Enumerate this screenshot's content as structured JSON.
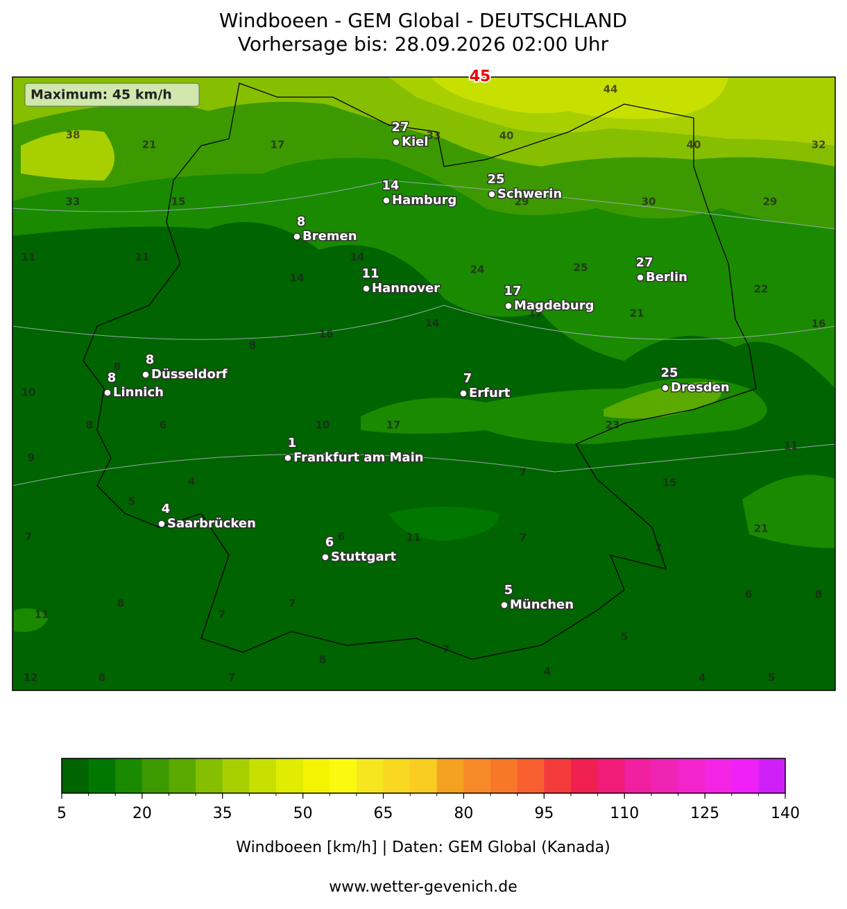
{
  "header": {
    "title": "Windboeen - GEM Global - DEUTSCHLAND",
    "subtitle": "Vorhersage bis: 28.09.2026 02:00 Uhr"
  },
  "map": {
    "maximum_box": "Maximum: 45 km/h",
    "maximum_marker": "45",
    "cities": [
      {
        "name": "Kiel",
        "value": 27
      },
      {
        "name": "Hamburg",
        "value": 14
      },
      {
        "name": "Schwerin",
        "value": 25
      },
      {
        "name": "Bremen",
        "value": 8
      },
      {
        "name": "Hannover",
        "value": 11
      },
      {
        "name": "Berlin",
        "value": 27
      },
      {
        "name": "Magdeburg",
        "value": 17
      },
      {
        "name": "Düsseldorf",
        "value": 8
      },
      {
        "name": "Linnich",
        "value": 8
      },
      {
        "name": "Dresden",
        "value": 25
      },
      {
        "name": "Erfurt",
        "value": 7
      },
      {
        "name": "Frankfurt am Main",
        "value": 1
      },
      {
        "name": "Saarbrücken",
        "value": 4
      },
      {
        "name": "Stuttgart",
        "value": 6
      },
      {
        "name": "München",
        "value": 5
      }
    ],
    "contour_labels": [
      38,
      21,
      17,
      33,
      40,
      40,
      32,
      44,
      33,
      15,
      29,
      30,
      29,
      11,
      11,
      14,
      14,
      24,
      25,
      22,
      14,
      17,
      21,
      16,
      8,
      16,
      8,
      10,
      8,
      6,
      10,
      17,
      23,
      11,
      9,
      7,
      4,
      15,
      5,
      7,
      6,
      11,
      7,
      7,
      21,
      6,
      8,
      8,
      7,
      11,
      7,
      5,
      7,
      8,
      4,
      12,
      8,
      7,
      4,
      5
    ]
  },
  "colorbar": {
    "lim": [
      5,
      140
    ],
    "ticks": [
      5,
      20,
      35,
      50,
      65,
      80,
      95,
      110,
      125,
      140
    ],
    "colors": [
      "#006400",
      "#007800",
      "#1a8a00",
      "#3c9a00",
      "#5aaa00",
      "#86be00",
      "#a8d000",
      "#c8e000",
      "#e0ec00",
      "#f4f400",
      "#fafa10",
      "#f6e620",
      "#f8d820",
      "#f8cc20",
      "#f4a020",
      "#f68a28",
      "#f67828",
      "#f86030",
      "#f43c3c",
      "#f02050",
      "#f01c78",
      "#f020a0",
      "#f024b4",
      "#f424cc",
      "#f424e4",
      "#f020f8",
      "#d020f8"
    ],
    "label": "Windboeen [km/h] | Daten: GEM Global (Kanada)"
  },
  "footer": {
    "website": "www.wetter-gevenich.de"
  }
}
